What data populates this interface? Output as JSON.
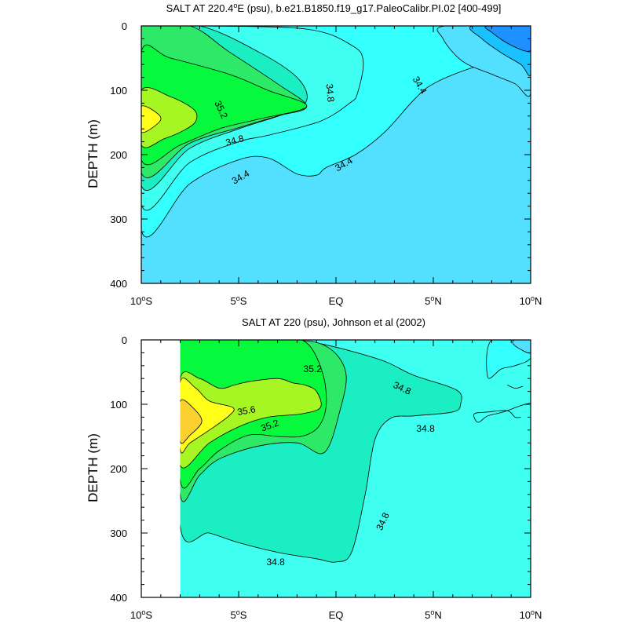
{
  "colors": {
    "c_le_34_0": "#1e90ff",
    "c_34_0_34_2": "#19c2ff",
    "c_34_2_34_4": "#53e0ff",
    "c_34_4_34_6": "#33ffff",
    "c_34_6_34_8": "#3ffff0",
    "c_34_8_35_0": "#1aeec2",
    "c_35_0_35_2": "#2ee868",
    "c_35_2_35_4": "#07f93d",
    "c_35_4_35_6": "#a6f623",
    "c_35_6_35_8": "#ffff1a",
    "c_ge_35_8": "#fbd02f",
    "line": "#000000"
  },
  "chart_data": [
    {
      "type": "contour",
      "title": "SALT AT 220.4°E (psu), b.e21.B1850.f19_g17.PaleoCalibr.PI.02 [400-499]",
      "title_parts": {
        "pre": "SALT AT 220.4",
        "deg": "o",
        "post": "E (psu), b.e21.B1850.f19_g17.PaleoCalibr.PI.02 [400-499]"
      },
      "ylabel": "DEPTH (m)",
      "xlim": [
        -10,
        10
      ],
      "ylim": [
        400,
        0
      ],
      "x_ticks": [
        {
          "value": -10,
          "num": "10",
          "deg": "o",
          "hemi": "S"
        },
        {
          "value": -5,
          "num": "5",
          "deg": "o",
          "hemi": "S"
        },
        {
          "value": 0,
          "num": "EQ",
          "deg": "",
          "hemi": ""
        },
        {
          "value": 5,
          "num": "5",
          "deg": "o",
          "hemi": "N"
        },
        {
          "value": 10,
          "num": "10",
          "deg": "o",
          "hemi": "N"
        }
      ],
      "y_ticks": [
        0,
        100,
        200,
        300,
        400
      ],
      "contour_interval": 0.2,
      "background_level": "c_34_2_34_4",
      "regions": [
        {
          "level": "c_34_4_34_6",
          "points": [
            [
              -10,
              0
            ],
            [
              10,
              0
            ],
            [
              10,
              40
            ],
            [
              7,
              65
            ],
            [
              5,
              90
            ],
            [
              4,
              115
            ],
            [
              2.5,
              165
            ],
            [
              1,
              200
            ],
            [
              -0.5,
              220
            ],
            [
              -1,
              232
            ],
            [
              -2,
              230
            ],
            [
              -3.5,
              205
            ],
            [
              -5,
              208
            ],
            [
              -7.5,
              245
            ],
            [
              -10,
              318
            ]
          ]
        },
        {
          "level": "c_34_2_34_4",
          "points": [
            [
              10,
              0
            ],
            [
              10,
              105
            ],
            [
              9.2,
              90
            ],
            [
              8,
              75
            ],
            [
              6.5,
              55
            ],
            [
              5.5,
              20
            ],
            [
              5.6,
              0
            ]
          ]
        },
        {
          "level": "c_34_0_34_2",
          "points": [
            [
              10,
              0
            ],
            [
              10,
              75
            ],
            [
              9.5,
              60
            ],
            [
              8.5,
              42
            ],
            [
              7.5,
              20
            ],
            [
              7,
              0
            ]
          ]
        },
        {
          "level": "c_le_34_0",
          "points": [
            [
              10,
              0
            ],
            [
              10,
              38
            ],
            [
              9,
              30
            ],
            [
              8,
              10
            ],
            [
              7.8,
              0
            ]
          ]
        },
        {
          "level": "c_34_6_34_8",
          "points": [
            [
              -10,
              0
            ],
            [
              -7,
              0
            ],
            [
              -1.5,
              5
            ],
            [
              0.8,
              30
            ],
            [
              1.4,
              55
            ],
            [
              1.1,
              105
            ],
            [
              0.7,
              120
            ],
            [
              -0.8,
              148
            ],
            [
              -3.5,
              170
            ],
            [
              -5,
              180
            ],
            [
              -7.5,
              212
            ],
            [
              -10,
              278
            ]
          ]
        },
        {
          "level": "c_34_8_35_0",
          "points": [
            [
              -10,
              0
            ],
            [
              -7,
              0
            ],
            [
              -4,
              40
            ],
            [
              -2,
              80
            ],
            [
              -1.5,
              115
            ],
            [
              -2.5,
              135
            ],
            [
              -5,
              160
            ],
            [
              -7.5,
              190
            ],
            [
              -10,
              248
            ]
          ]
        },
        {
          "level": "c_35_0_35_2",
          "points": [
            [
              -10,
              0
            ],
            [
              -7.5,
              0
            ],
            [
              -5.5,
              40
            ],
            [
              -3,
              90
            ],
            [
              -1.5,
              125
            ],
            [
              -3,
              140
            ],
            [
              -5,
              158
            ],
            [
              -7.5,
              182
            ],
            [
              -10,
              228
            ]
          ]
        },
        {
          "level": "c_35_2_35_4",
          "points": [
            [
              -10,
              40
            ],
            [
              -8.5,
              50
            ],
            [
              -5.5,
              75
            ],
            [
              -3.5,
              100
            ],
            [
              -1.5,
              125
            ],
            [
              -4,
              145
            ],
            [
              -6,
              160
            ],
            [
              -8,
              185
            ],
            [
              -10,
              208
            ]
          ]
        },
        {
          "level": "c_35_4_35_6",
          "points": [
            [
              -10,
              100
            ],
            [
              -8.5,
              110
            ],
            [
              -7.3,
              130
            ],
            [
              -7.2,
              148
            ],
            [
              -7.8,
              162
            ],
            [
              -8.8,
              175
            ],
            [
              -10,
              185
            ]
          ]
        },
        {
          "level": "c_35_6_35_8",
          "points": [
            [
              -10,
              125
            ],
            [
              -9.1,
              138
            ],
            [
              -9.1,
              150
            ],
            [
              -10,
              165
            ]
          ]
        }
      ],
      "labels": [
        {
          "text": "35.2",
          "x": -5.9,
          "y": 130,
          "rot": 65
        },
        {
          "text": "34.8",
          "x": -0.3,
          "y": 104,
          "rot": 85
        },
        {
          "text": "34.4",
          "x": 4.3,
          "y": 92,
          "rot": 60
        },
        {
          "text": "34.8",
          "x": -5.2,
          "y": 178,
          "rot": -15
        },
        {
          "text": "34.4",
          "x": 0.4,
          "y": 215,
          "rot": -30
        },
        {
          "text": "34.4",
          "x": -4.9,
          "y": 235,
          "rot": -30
        }
      ]
    },
    {
      "type": "contour",
      "title": "SALT AT 220 (psu), Johnson et al (2002)",
      "ylabel": "DEPTH (m)",
      "xlim": [
        -10,
        10
      ],
      "ylim": [
        400,
        0
      ],
      "x_ticks": [
        {
          "value": -10,
          "num": "10",
          "deg": "o",
          "hemi": "S"
        },
        {
          "value": -5,
          "num": "5",
          "deg": "o",
          "hemi": "S"
        },
        {
          "value": 0,
          "num": "EQ",
          "deg": "",
          "hemi": ""
        },
        {
          "value": 5,
          "num": "5",
          "deg": "o",
          "hemi": "N"
        },
        {
          "value": 10,
          "num": "10",
          "deg": "o",
          "hemi": "N"
        }
      ],
      "y_ticks": [
        0,
        100,
        200,
        300,
        400
      ],
      "contour_interval": 0.2,
      "data_xmin": -8,
      "background_level": "c_34_6_34_8",
      "regions": [
        {
          "level": "c_34_8_35_0",
          "points": [
            [
              -8,
              0
            ],
            [
              -6.5,
              0
            ],
            [
              -2,
              0
            ],
            [
              2,
              28
            ],
            [
              4,
              55
            ],
            [
              6.2,
              78
            ],
            [
              6.4,
              100
            ],
            [
              6,
              112
            ],
            [
              4,
              118
            ],
            [
              2.8,
              122
            ],
            [
              2,
              155
            ],
            [
              1.5,
              240
            ],
            [
              0.8,
              330
            ],
            [
              0,
              345
            ],
            [
              -1,
              340
            ],
            [
              -3,
              330
            ],
            [
              -5,
              315
            ],
            [
              -6.5,
              300
            ],
            [
              -8,
              290
            ]
          ]
        },
        {
          "level": "c_34_4_34_6",
          "points": [
            [
              8,
              0
            ],
            [
              10,
              0
            ],
            [
              10,
              28
            ],
            [
              9.2,
              40
            ],
            [
              8.5,
              45
            ],
            [
              7.8,
              58
            ]
          ]
        },
        {
          "level": "c_34_2_34_4",
          "points": [
            [
              10,
              0
            ],
            [
              10,
              20
            ],
            [
              9.5,
              15
            ],
            [
              9.1,
              6
            ],
            [
              9.2,
              0
            ]
          ]
        },
        {
          "level": "c_35_0_35_2",
          "points": [
            [
              -8,
              0
            ],
            [
              -2.5,
              0
            ],
            [
              -0.5,
              10
            ],
            [
              0.5,
              50
            ],
            [
              0.2,
              110
            ],
            [
              -0.6,
              175
            ],
            [
              -2,
              160
            ],
            [
              -4,
              165
            ],
            [
              -6,
              185
            ],
            [
              -7,
              210
            ],
            [
              -8,
              240
            ]
          ]
        },
        {
          "level": "c_35_2_35_4",
          "points": [
            [
              -8,
              0
            ],
            [
              -2.8,
              0
            ],
            [
              -1.5,
              5
            ],
            [
              -0.7,
              50
            ],
            [
              -0.5,
              100
            ],
            [
              -0.9,
              135
            ],
            [
              -1.8,
              150
            ],
            [
              -3,
              150
            ],
            [
              -4.5,
              148
            ],
            [
              -6,
              172
            ],
            [
              -7,
              200
            ],
            [
              -8,
              218
            ]
          ]
        },
        {
          "level": "c_35_4_35_6",
          "points": [
            [
              -8,
              60
            ],
            [
              -7,
              60
            ],
            [
              -6,
              75
            ],
            [
              -5.2,
              70
            ],
            [
              -4.5,
              65
            ],
            [
              -3,
              60
            ],
            [
              -2.2,
              67
            ],
            [
              -1.6,
              70
            ],
            [
              -1,
              80
            ],
            [
              -0.8,
              105
            ],
            [
              -1.8,
              115
            ],
            [
              -3.5,
              120
            ],
            [
              -5,
              135
            ],
            [
              -6.5,
              160
            ],
            [
              -8,
              195
            ]
          ]
        },
        {
          "level": "c_35_6_35_8",
          "points": [
            [
              -8,
              65
            ],
            [
              -7.2,
              75
            ],
            [
              -6.5,
              95
            ],
            [
              -5.3,
              105
            ],
            [
              -5.5,
              118
            ],
            [
              -6.5,
              140
            ],
            [
              -7.5,
              160
            ],
            [
              -8,
              170
            ]
          ]
        },
        {
          "level": "c_ge_35_8",
          "points": [
            [
              -8,
              95
            ],
            [
              -7.2,
              110
            ],
            [
              -6.9,
              128
            ],
            [
              -7.5,
              148
            ],
            [
              -8,
              158
            ]
          ]
        }
      ],
      "polylines": [
        {
          "points": [
            [
              9.5,
              120
            ],
            [
              9.2,
              120
            ],
            [
              8.8,
              110
            ],
            [
              7.8,
              112
            ],
            [
              7.1,
              115
            ],
            [
              7.3,
              128
            ],
            [
              7.8,
              118
            ],
            [
              8.6,
              112
            ],
            [
              9.5,
              102
            ],
            [
              10,
              98
            ]
          ]
        },
        {
          "points": [
            [
              8.8,
              70
            ],
            [
              9.2,
              75
            ],
            [
              9.6,
              72
            ]
          ]
        }
      ],
      "labels": [
        {
          "text": "35.2",
          "x": -1.2,
          "y": 45,
          "rot": 0
        },
        {
          "text": "35.6",
          "x": -4.6,
          "y": 110,
          "rot": -10
        },
        {
          "text": "35.2",
          "x": -3.4,
          "y": 133,
          "rot": -20
        },
        {
          "text": "34.8",
          "x": 3.4,
          "y": 75,
          "rot": 25
        },
        {
          "text": "34.8",
          "x": 4.6,
          "y": 138,
          "rot": 0
        },
        {
          "text": "34.8",
          "x": 2.4,
          "y": 282,
          "rot": -65
        },
        {
          "text": "34.8",
          "x": -3.1,
          "y": 345,
          "rot": 0
        }
      ]
    }
  ]
}
